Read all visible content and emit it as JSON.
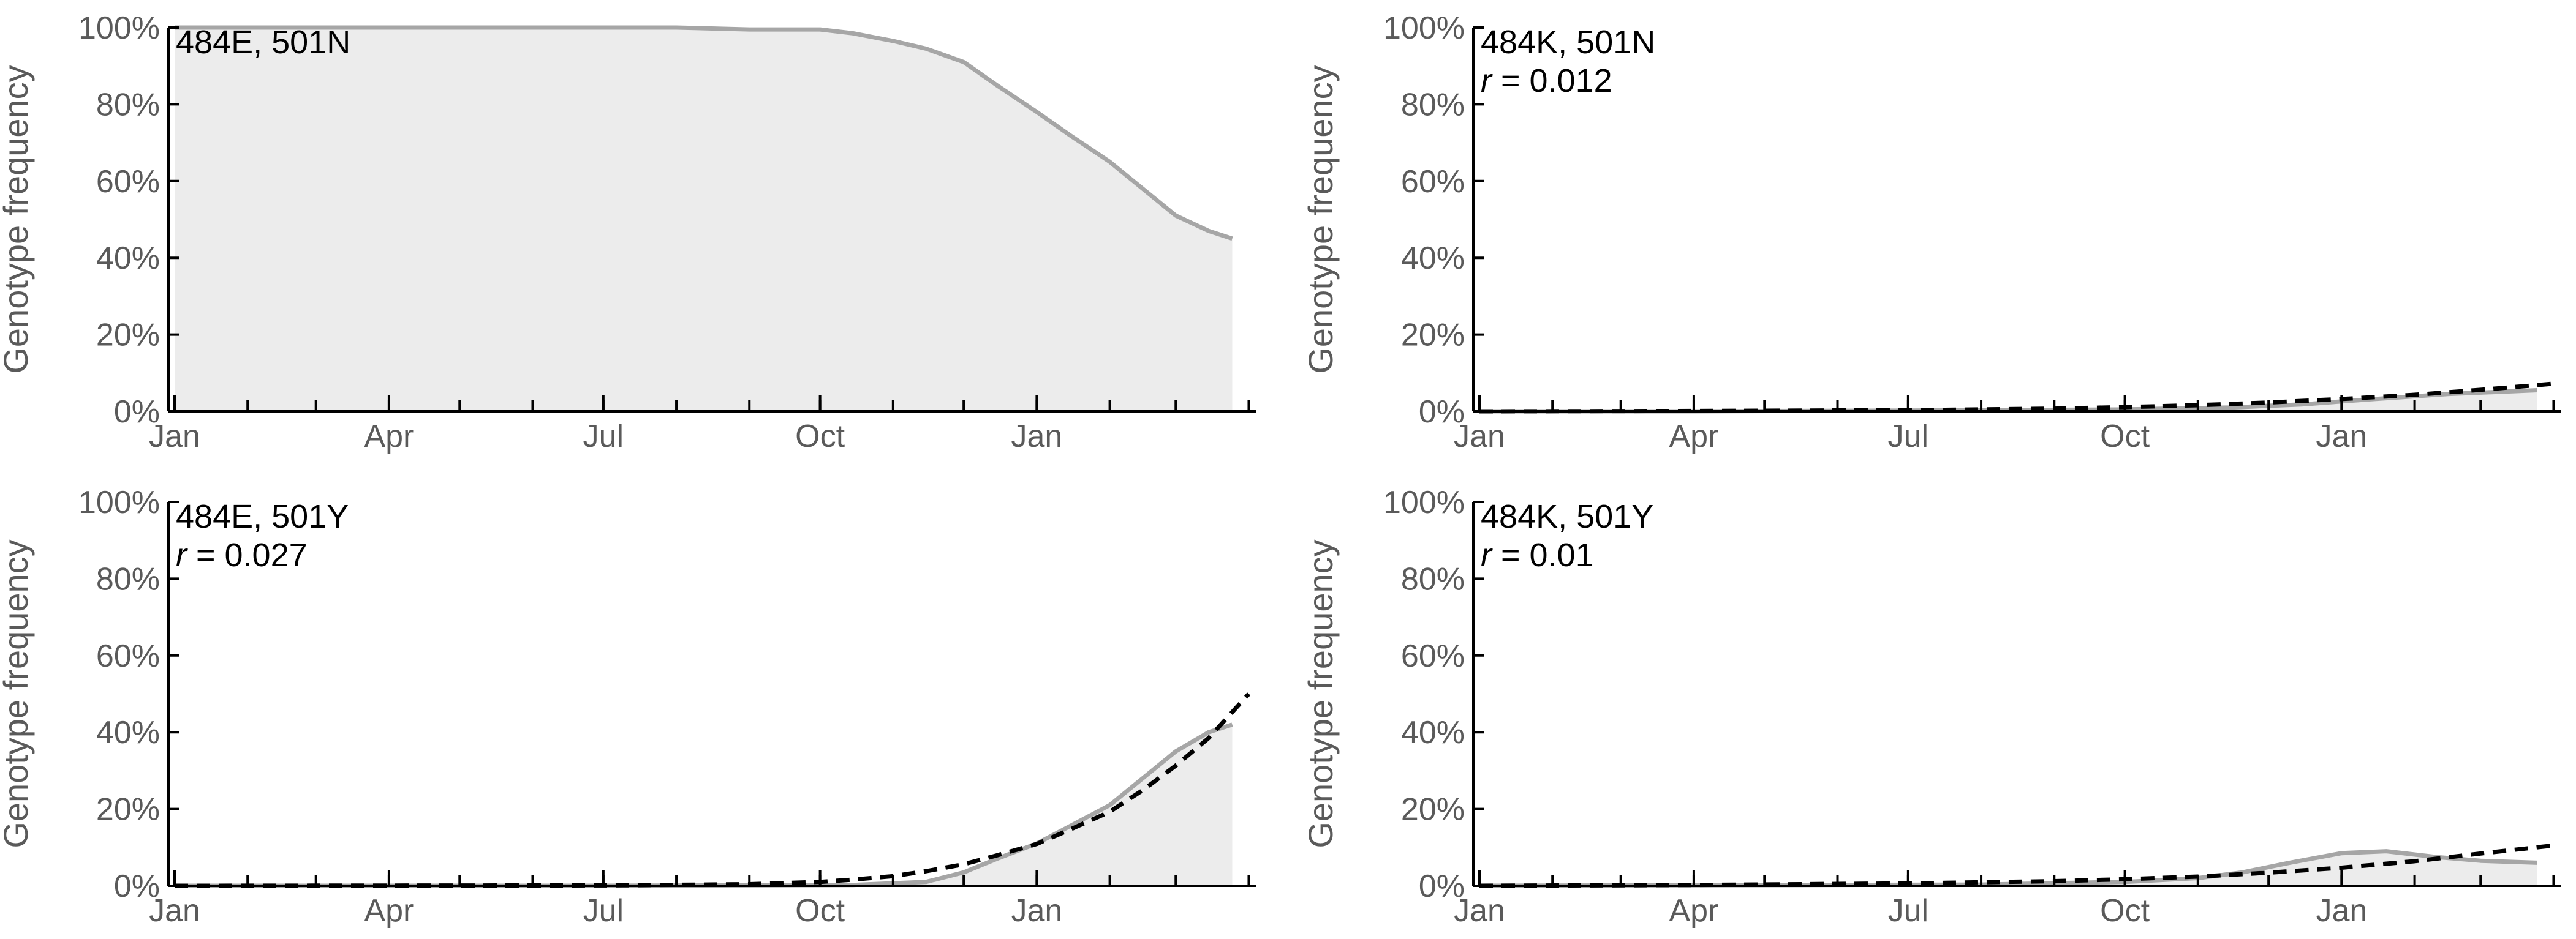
{
  "chart_data": [
    {
      "type": "area",
      "title": "484E, 501N",
      "ylabel": "Genotype frequency",
      "x_ticks": [
        "Jan",
        "Apr",
        "Jul",
        "Oct",
        "Jan"
      ],
      "y_ticks": [
        "0%",
        "20%",
        "40%",
        "60%",
        "80%",
        "100%"
      ],
      "ylim": [
        0,
        100
      ],
      "series": [
        {
          "values_x": [
            "2020-01-01",
            "2020-02-01",
            "2020-03-01",
            "2020-04-01",
            "2020-05-01",
            "2020-06-01",
            "2020-07-01",
            "2020-08-01",
            "2020-09-01",
            "2020-10-01",
            "2020-10-15",
            "2020-11-01",
            "2020-11-15",
            "2020-12-01",
            "2020-12-15",
            "2021-01-01",
            "2021-01-15",
            "2021-02-01",
            "2021-02-15",
            "2021-03-01",
            "2021-03-15",
            "2021-03-25"
          ],
          "values_y": [
            100,
            100,
            100,
            100,
            100,
            100,
            100,
            100,
            99.5,
            99.5,
            98.5,
            96.5,
            94.5,
            91,
            85,
            78,
            72,
            65,
            58,
            51,
            47,
            45
          ]
        }
      ]
    },
    {
      "type": "area",
      "title": "484K, 501N",
      "r_prefix": "r",
      "r_value": "0.012",
      "ylabel": "Genotype frequency",
      "x_ticks": [
        "Jan",
        "Apr",
        "Jul",
        "Oct",
        "Jan"
      ],
      "y_ticks": [
        "0%",
        "20%",
        "40%",
        "60%",
        "80%",
        "100%"
      ],
      "ylim": [
        0,
        100
      ],
      "series": [
        {
          "values_x": [
            "2020-01-01",
            "2020-04-01",
            "2020-07-01",
            "2020-10-01",
            "2020-11-15",
            "2020-12-15",
            "2021-01-15",
            "2021-02-15",
            "2021-03-25"
          ],
          "values_y": [
            0,
            0,
            0.2,
            0.5,
            1,
            1.8,
            3.2,
            4.5,
            5.5
          ]
        }
      ],
      "fit": {
        "values_x": [
          "2020-01-01",
          "2020-04-01",
          "2020-07-01",
          "2020-09-01",
          "2020-10-01",
          "2020-11-01",
          "2020-12-01",
          "2021-01-01",
          "2021-02-01",
          "2021-03-01",
          "2021-04-01"
        ],
        "values_y": [
          0,
          0.1,
          0.3,
          0.7,
          1.1,
          1.6,
          2.3,
          3.2,
          4.3,
          5.6,
          7.2
        ]
      }
    },
    {
      "type": "area",
      "title": "484E, 501Y",
      "r_prefix": "r",
      "r_value": "0.027",
      "ylabel": "Genotype frequency",
      "x_ticks": [
        "Jan",
        "Apr",
        "Jul",
        "Oct",
        "Jan"
      ],
      "y_ticks": [
        "0%",
        "20%",
        "40%",
        "60%",
        "80%",
        "100%"
      ],
      "ylim": [
        0,
        100
      ],
      "series": [
        {
          "values_x": [
            "2020-01-01",
            "2020-07-01",
            "2020-10-15",
            "2020-11-15",
            "2020-12-01",
            "2020-12-15",
            "2021-01-01",
            "2021-01-15",
            "2021-02-01",
            "2021-02-15",
            "2021-03-01",
            "2021-03-15",
            "2021-03-25"
          ],
          "values_y": [
            0,
            0,
            0.2,
            1,
            3.5,
            7,
            11,
            15.5,
            21,
            28,
            35,
            40,
            42
          ]
        }
      ],
      "fit": {
        "values_x": [
          "2020-01-01",
          "2020-07-01",
          "2020-09-01",
          "2020-10-01",
          "2020-10-15",
          "2020-11-01",
          "2020-11-15",
          "2020-12-01",
          "2020-12-15",
          "2021-01-01",
          "2021-01-15",
          "2021-02-01",
          "2021-02-15",
          "2021-03-01",
          "2021-03-15",
          "2021-04-01"
        ],
        "values_y": [
          0,
          0.1,
          0.4,
          1,
          1.6,
          2.5,
          3.8,
          5.6,
          7.9,
          10.9,
          14.6,
          19.3,
          24.9,
          31.3,
          38.5,
          50
        ]
      }
    },
    {
      "type": "area",
      "title": "484K, 501Y",
      "r_prefix": "r",
      "r_value": "0.01",
      "ylabel": "Genotype frequency",
      "x_ticks": [
        "Jan",
        "Apr",
        "Jul",
        "Oct",
        "Jan"
      ],
      "y_ticks": [
        "0%",
        "20%",
        "40%",
        "60%",
        "80%",
        "100%"
      ],
      "ylim": [
        0,
        100
      ],
      "series": [
        {
          "values_x": [
            "2020-01-01",
            "2020-08-01",
            "2020-10-01",
            "2020-11-01",
            "2020-11-20",
            "2020-12-10",
            "2021-01-01",
            "2021-01-20",
            "2021-02-10",
            "2021-03-01",
            "2021-03-25"
          ],
          "values_y": [
            0,
            0.3,
            1,
            2,
            3.5,
            6,
            8.5,
            9,
            7.5,
            6.5,
            6
          ]
        }
      ],
      "fit": {
        "values_x": [
          "2020-01-01",
          "2020-04-01",
          "2020-07-01",
          "2020-09-01",
          "2020-10-01",
          "2020-11-01",
          "2020-12-01",
          "2021-01-01",
          "2021-02-01",
          "2021-03-01",
          "2021-04-01"
        ],
        "values_y": [
          0,
          0.2,
          0.6,
          1.2,
          1.7,
          2.4,
          3.4,
          4.7,
          6.4,
          8.4,
          10.5
        ]
      }
    }
  ],
  "colors": {
    "area_fill": "#ececec",
    "observed_line": "#a6a6a6",
    "fit_line": "#000000",
    "axis": "#000000",
    "tick_label": "#5a5a5a"
  }
}
